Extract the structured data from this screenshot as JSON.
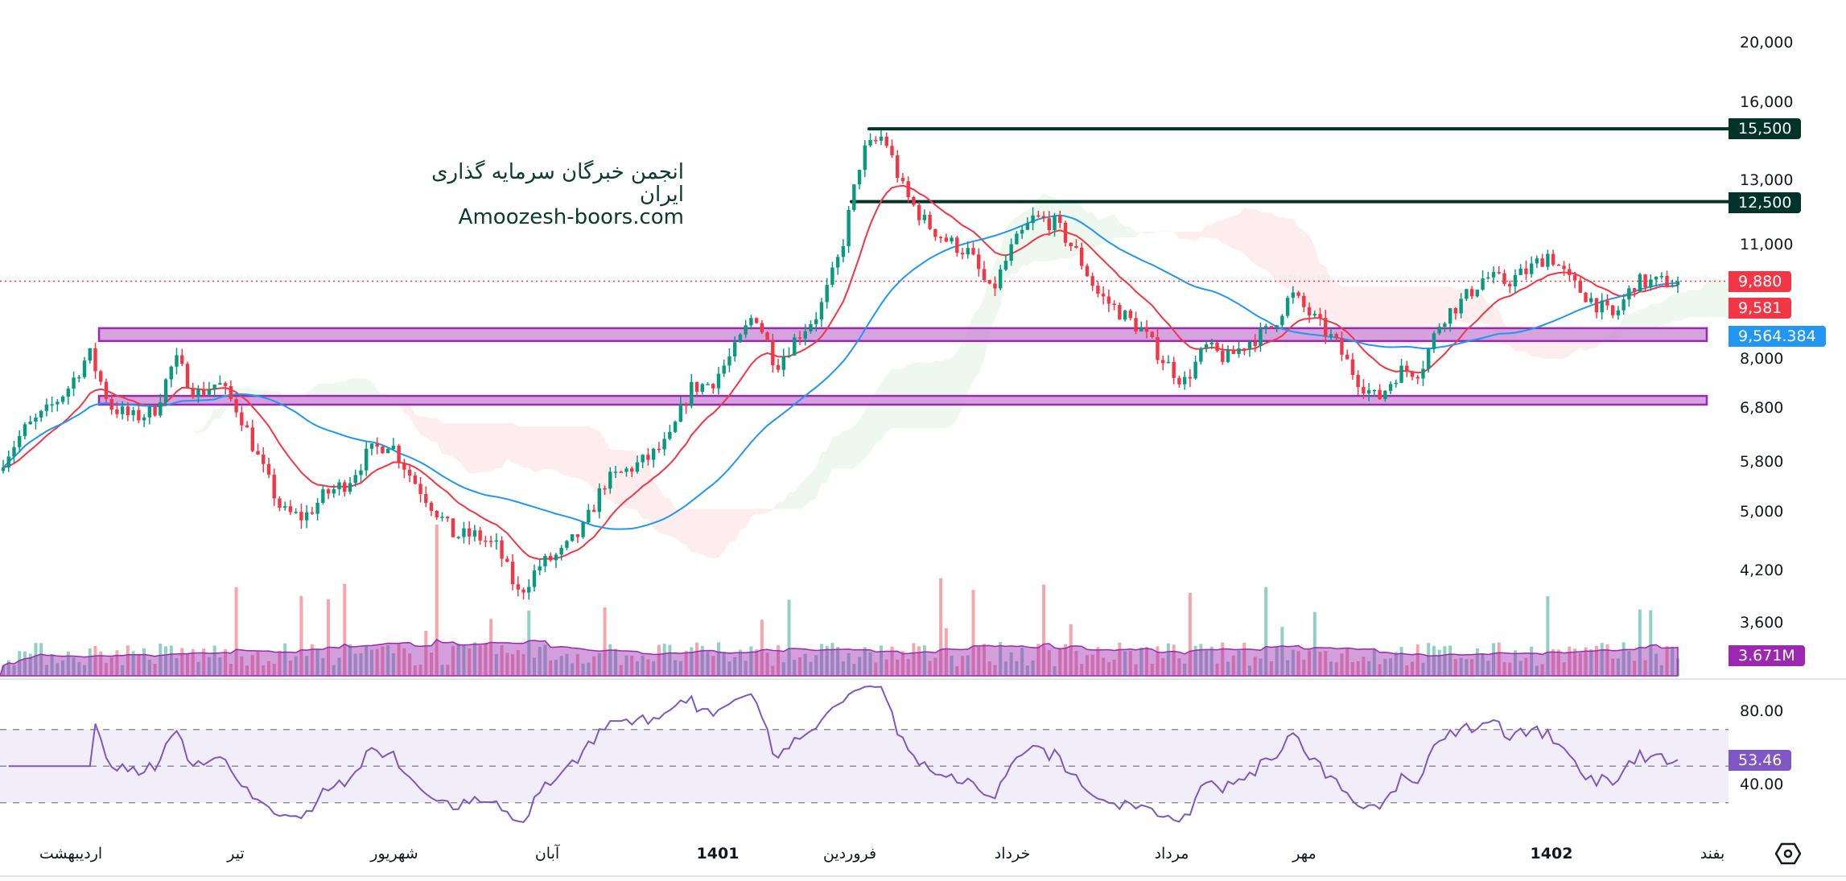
{
  "watermark": {
    "line1": "انجمن خبرگان سرمایه گذاری ایران",
    "line2": "Amoozesh-boors.com"
  },
  "colors": {
    "up": "#089981",
    "down": "#f23645",
    "ma_fast": "#f23645",
    "ma_slow": "#2196f3",
    "zone_fill": "#ce93d8",
    "zone_border": "#9c27b0",
    "level_line": "#00332a",
    "rsi": "#7e57c2",
    "volume_ma": "#9c27b0"
  },
  "price_axis": {
    "ticks": [
      "20,000",
      "16,000",
      "13,000",
      "11,000",
      "8,000",
      "6,800",
      "5,800",
      "5,000",
      "4,200",
      "3,600"
    ]
  },
  "price_tags": [
    {
      "value": "15,500",
      "color": "#00332a"
    },
    {
      "value": "12,500",
      "color": "#00332a"
    },
    {
      "value": "9,880",
      "color": "#f23645"
    },
    {
      "value": "9,581",
      "color": "#f23645"
    },
    {
      "value": "9,564.384",
      "color": "#2196f3"
    },
    {
      "value": "3.671M",
      "color": "#9c27b0"
    }
  ],
  "rsi_axis": {
    "ticks": [
      "80.00",
      "40.00"
    ],
    "current": "53.46"
  },
  "time_axis": {
    "labels": [
      "اردیبهشت",
      "تیر",
      "شهریور",
      "آبان",
      "1401",
      "فروردین",
      "خرداد",
      "مرداد",
      "مهر",
      "1402",
      "بفند"
    ]
  },
  "settings_icon": "hexagon-settings-icon",
  "chart_data": {
    "type": "candlestick",
    "scale": "log",
    "ylim": [
      3500,
      21000
    ],
    "grid": false,
    "indicators": [
      "moving average (red)",
      "moving average (blue)",
      "ichimoku cloud",
      "volume with moving average",
      "RSI"
    ],
    "horizontal_levels": [
      15500,
      12500
    ],
    "support_zones": [
      [
        8280,
        8600
      ],
      [
        6860,
        7040
      ]
    ],
    "last_price": 9880,
    "ma_fast_last": 9581,
    "ma_slow_last": 9564.384,
    "volume_ma_last": "3.671M",
    "rsi_last": 53.46,
    "rsi_bands": [
      70,
      50,
      30
    ],
    "close_approx": [
      5842,
      6370,
      6713,
      7196,
      7988,
      6831,
      6597,
      6713,
      7852,
      7073,
      7323,
      6713,
      5740,
      4995,
      4910,
      5263,
      5449,
      5944,
      6155,
      5545,
      5082,
      4660,
      4660,
      4502,
      3915,
      4270,
      4422,
      4741,
      5449,
      5642,
      5842,
      6155,
      7196,
      7323,
      7988,
      9022,
      7716,
      8417,
      9022,
      10738,
      14432,
      15206,
      12777,
      11715,
      11118,
      10738,
      9508,
      10926,
      11920,
      11715,
      10738,
      9508,
      9022,
      8564,
      7852,
      7323,
      8128,
      7852,
      8271,
      8564,
      9508,
      8868,
      8271,
      7453,
      6951,
      7584,
      7584,
      8868,
      9342,
      10016,
      9844,
      10193,
      10738,
      9844,
      9342,
      8868,
      9844,
      9844,
      9880
    ]
  }
}
